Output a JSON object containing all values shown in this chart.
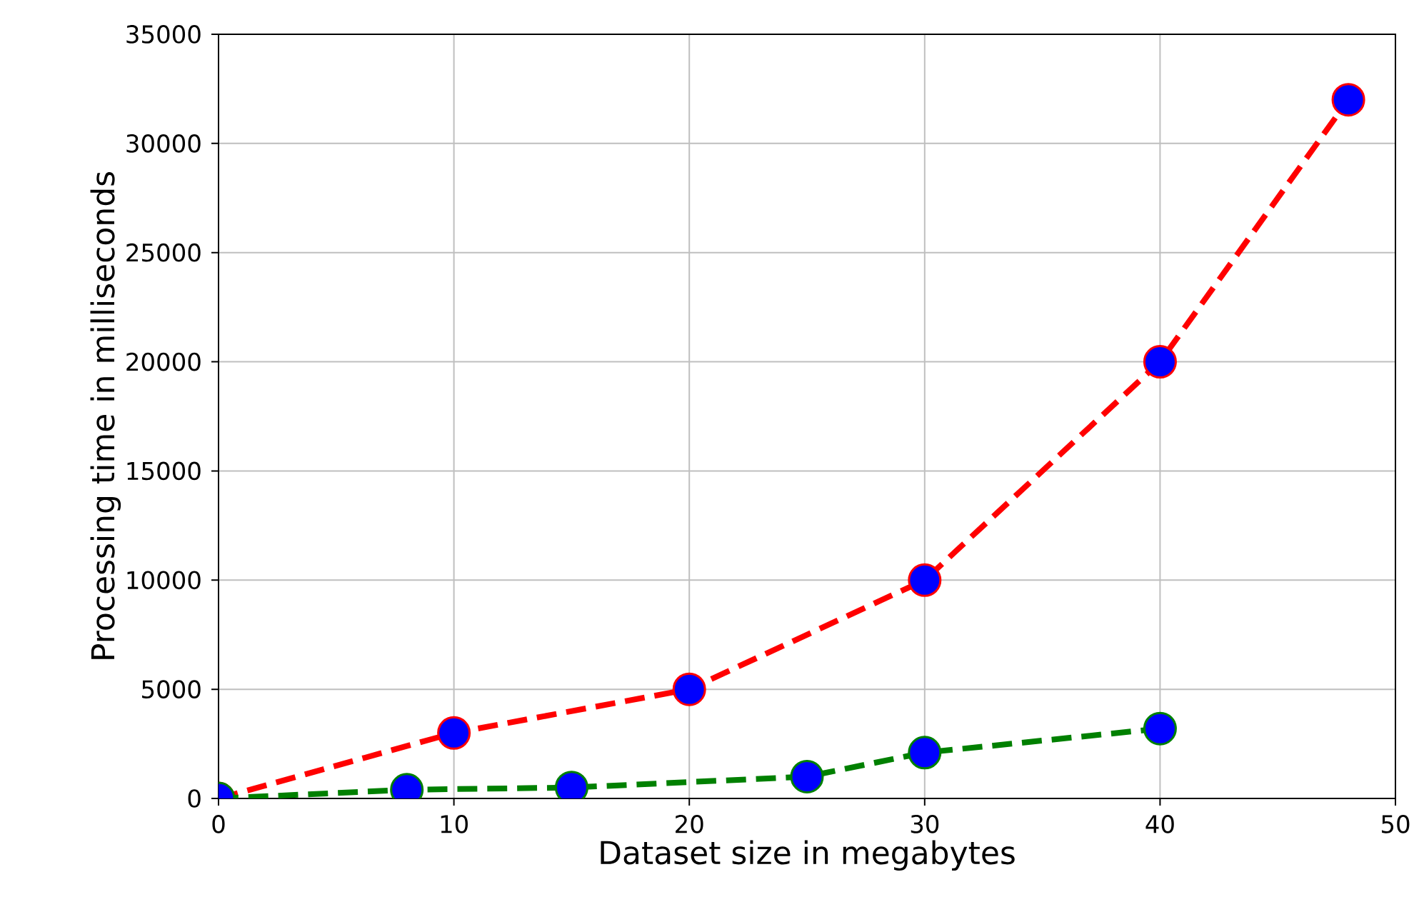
{
  "chart_data": {
    "type": "line",
    "xlabel": "Dataset size in megabytes",
    "ylabel": "Processing time in milliseconds",
    "xlim": [
      0,
      50
    ],
    "ylim": [
      0,
      35000
    ],
    "xticks": [
      0,
      10,
      20,
      30,
      40,
      50
    ],
    "yticks": [
      0,
      5000,
      10000,
      15000,
      20000,
      25000,
      30000,
      35000
    ],
    "grid": true,
    "marker": "circle",
    "line_style": "dashed",
    "series": [
      {
        "color": "#ff0000",
        "colors": [
          "#0000ff",
          "#0000ff",
          "#0000ff",
          "#0000ff",
          "#0000ff",
          "#0000ff"
        ],
        "x": [
          0,
          10,
          20,
          30,
          40,
          48
        ],
        "values": [
          0,
          3000,
          5000,
          10000,
          20000,
          32000
        ]
      },
      {
        "color": "#008000",
        "colors": [
          "#0000ff",
          "#0000ff",
          "#0000ff",
          "#0000ff",
          "#0000ff",
          "#0000ff"
        ],
        "x": [
          0,
          8,
          15,
          25,
          30,
          40
        ],
        "values": [
          0,
          400,
          500,
          1000,
          2100,
          3200
        ]
      }
    ]
  }
}
